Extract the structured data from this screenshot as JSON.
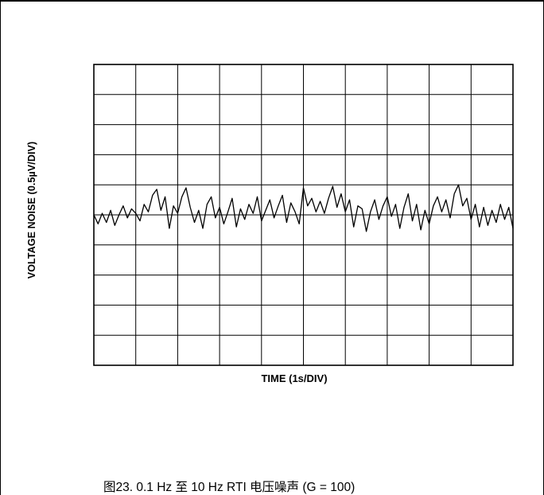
{
  "chart_data": {
    "type": "line",
    "title": "",
    "xlabel": "TIME (1s/DIV)",
    "ylabel": "VOLTAGE NOISE (0.5µV/DIV)",
    "x_divisions": 10,
    "y_divisions": 10,
    "xlim": [
      0,
      10
    ],
    "ylim": [
      -5,
      5
    ],
    "grid": true,
    "series": [
      {
        "color": "#000000",
        "x": [
          0.0,
          0.1,
          0.2,
          0.3,
          0.4,
          0.5,
          0.6,
          0.7,
          0.8,
          0.9,
          1.0,
          1.1,
          1.2,
          1.3,
          1.4,
          1.5,
          1.6,
          1.7,
          1.8,
          1.9,
          2.0,
          2.1,
          2.2,
          2.3,
          2.4,
          2.5,
          2.6,
          2.7,
          2.8,
          2.9,
          3.0,
          3.1,
          3.2,
          3.3,
          3.4,
          3.5,
          3.6,
          3.7,
          3.8,
          3.9,
          4.0,
          4.1,
          4.2,
          4.3,
          4.4,
          4.5,
          4.6,
          4.7,
          4.8,
          4.9,
          5.0,
          5.1,
          5.2,
          5.3,
          5.4,
          5.5,
          5.6,
          5.7,
          5.8,
          5.9,
          6.0,
          6.1,
          6.2,
          6.3,
          6.4,
          6.5,
          6.6,
          6.7,
          6.8,
          6.9,
          7.0,
          7.1,
          7.2,
          7.3,
          7.4,
          7.5,
          7.6,
          7.7,
          7.8,
          7.9,
          8.0,
          8.1,
          8.2,
          8.3,
          8.4,
          8.5,
          8.6,
          8.7,
          8.8,
          8.9,
          9.0,
          9.1,
          9.2,
          9.3,
          9.4,
          9.5,
          9.6,
          9.7,
          9.8,
          9.9,
          10.0
        ],
        "y": [
          0.0,
          -0.3,
          0.05,
          -0.25,
          0.15,
          -0.35,
          0.0,
          0.3,
          -0.1,
          0.2,
          0.05,
          -0.2,
          0.35,
          0.1,
          0.65,
          0.85,
          0.15,
          0.6,
          -0.45,
          0.3,
          0.05,
          0.6,
          0.9,
          0.25,
          -0.25,
          0.15,
          -0.45,
          0.35,
          0.6,
          -0.1,
          0.25,
          -0.3,
          0.1,
          0.55,
          -0.4,
          0.2,
          -0.15,
          0.35,
          0.05,
          0.6,
          -0.2,
          0.15,
          0.5,
          -0.1,
          0.3,
          0.65,
          -0.25,
          0.4,
          0.1,
          -0.3,
          0.9,
          0.3,
          0.55,
          0.1,
          0.45,
          0.05,
          0.55,
          0.95,
          0.25,
          0.7,
          0.1,
          0.5,
          -0.4,
          0.3,
          0.2,
          -0.55,
          0.1,
          0.5,
          -0.15,
          0.3,
          0.6,
          -0.05,
          0.35,
          -0.45,
          0.25,
          0.7,
          -0.2,
          0.35,
          -0.5,
          0.15,
          -0.3,
          0.3,
          0.6,
          0.1,
          0.5,
          -0.1,
          0.7,
          1.0,
          0.3,
          0.55,
          -0.15,
          0.35,
          -0.4,
          0.25,
          -0.35,
          0.15,
          -0.25,
          0.35,
          -0.15,
          0.25,
          -0.45
        ]
      }
    ]
  },
  "caption": "图23. 0.1 Hz 至 10 Hz RTI 电压噪声 (G = 100)"
}
